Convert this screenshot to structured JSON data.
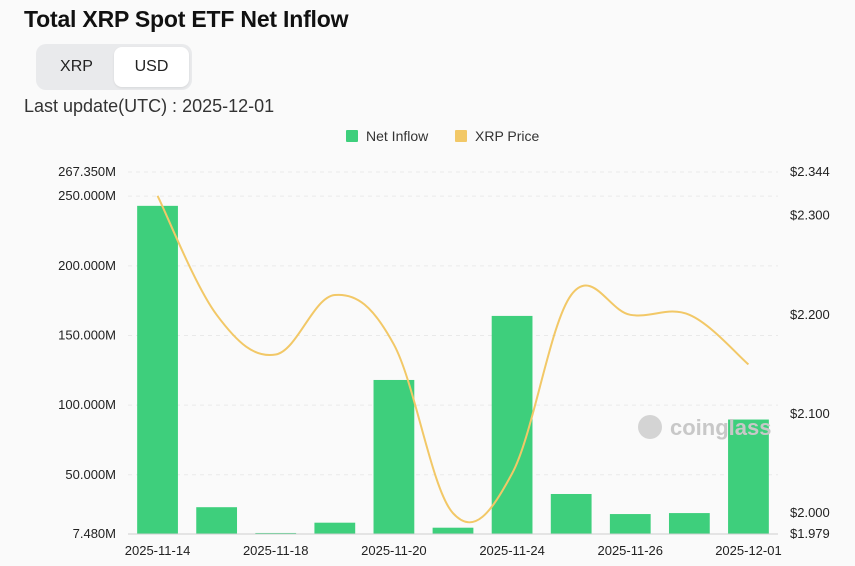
{
  "title": "Total XRP Spot ETF Net Inflow",
  "toggle": {
    "options": [
      "XRP",
      "USD"
    ],
    "selected": "USD"
  },
  "last_update": {
    "label": "Last update(UTC) :",
    "value": "2025-12-01"
  },
  "watermark": "coinglass",
  "colors": {
    "bar": "#3ecf7c",
    "line": "#f2c867",
    "grid": "#e9e9e9"
  },
  "chart_data": {
    "type": "bar",
    "legend": [
      {
        "name": "Net Inflow",
        "color": "#3ecf7c",
        "kind": "bar"
      },
      {
        "name": "XRP Price",
        "color": "#f2c867",
        "kind": "line"
      }
    ],
    "legend_position": "top-center",
    "x_tick_labels": [
      "2025-11-14",
      "2025-11-18",
      "2025-11-20",
      "2025-11-24",
      "2025-11-26",
      "2025-12-01"
    ],
    "y_left": {
      "ticks": [
        7.48,
        50,
        100,
        150,
        200,
        250,
        267.35
      ],
      "tick_labels": [
        "7.480M",
        "50.000M",
        "100.000M",
        "150.000M",
        "200.000M",
        "250.000M",
        "267.350M"
      ],
      "range": [
        7.48,
        267.35
      ]
    },
    "y_right": {
      "ticks": [
        1.979,
        2.0,
        2.1,
        2.2,
        2.3,
        2.344
      ],
      "tick_labels": [
        "$1.979",
        "$2.000",
        "$2.100",
        "$2.200",
        "$2.300",
        "$2.344"
      ],
      "range": [
        1.979,
        2.344
      ]
    },
    "grid": true,
    "series": [
      {
        "name": "Net Inflow",
        "type": "bar",
        "axis": "left",
        "values": [
          243.05,
          26.72,
          8.22,
          15.6,
          118.06,
          12.0,
          164.04,
          36.2,
          21.8,
          22.5,
          89.65
        ]
      },
      {
        "name": "XRP Price",
        "type": "line",
        "axis": "right",
        "values": [
          2.32,
          2.2,
          2.16,
          2.22,
          2.17,
          2.0,
          2.04,
          2.22,
          2.2,
          2.2,
          2.15
        ]
      }
    ]
  }
}
